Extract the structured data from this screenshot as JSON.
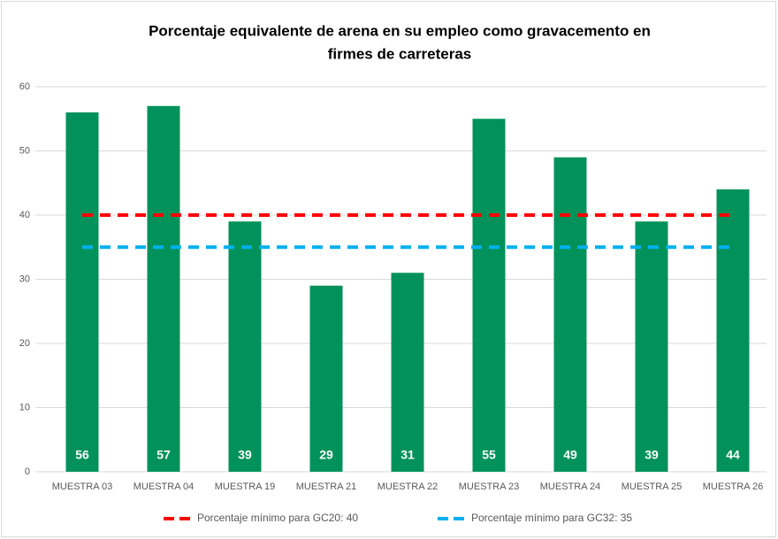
{
  "chart_data": {
    "type": "bar",
    "title": [
      "Porcentaje equivalente de arena en su empleo como gravacemento en",
      "firmes de carreteras"
    ],
    "categories": [
      "MUESTRA 03",
      "MUESTRA 04",
      "MUESTRA 19",
      "MUESTRA 21",
      "MUESTRA 22",
      "MUESTRA 23",
      "MUESTRA 24",
      "MUESTRA 25",
      "MUESTRA 26"
    ],
    "values": [
      56,
      57,
      39,
      29,
      31,
      55,
      49,
      39,
      44
    ],
    "color": "#00925a",
    "series": [
      {
        "name": "Porcentaje mínimo para GC20: 40",
        "color": "#ff0000",
        "values": [
          40,
          40,
          40,
          40,
          40,
          40,
          40,
          40,
          40
        ]
      },
      {
        "name": "Porcentaje mínimo para GC32: 35",
        "color": "#00b0f0",
        "values": [
          35,
          35,
          35,
          35,
          35,
          35,
          35,
          35,
          35
        ]
      }
    ],
    "ylim": [
      0,
      60
    ],
    "yticks": [
      0,
      10,
      20,
      30,
      40,
      50,
      60
    ],
    "grid": true,
    "legend": "bottom"
  }
}
